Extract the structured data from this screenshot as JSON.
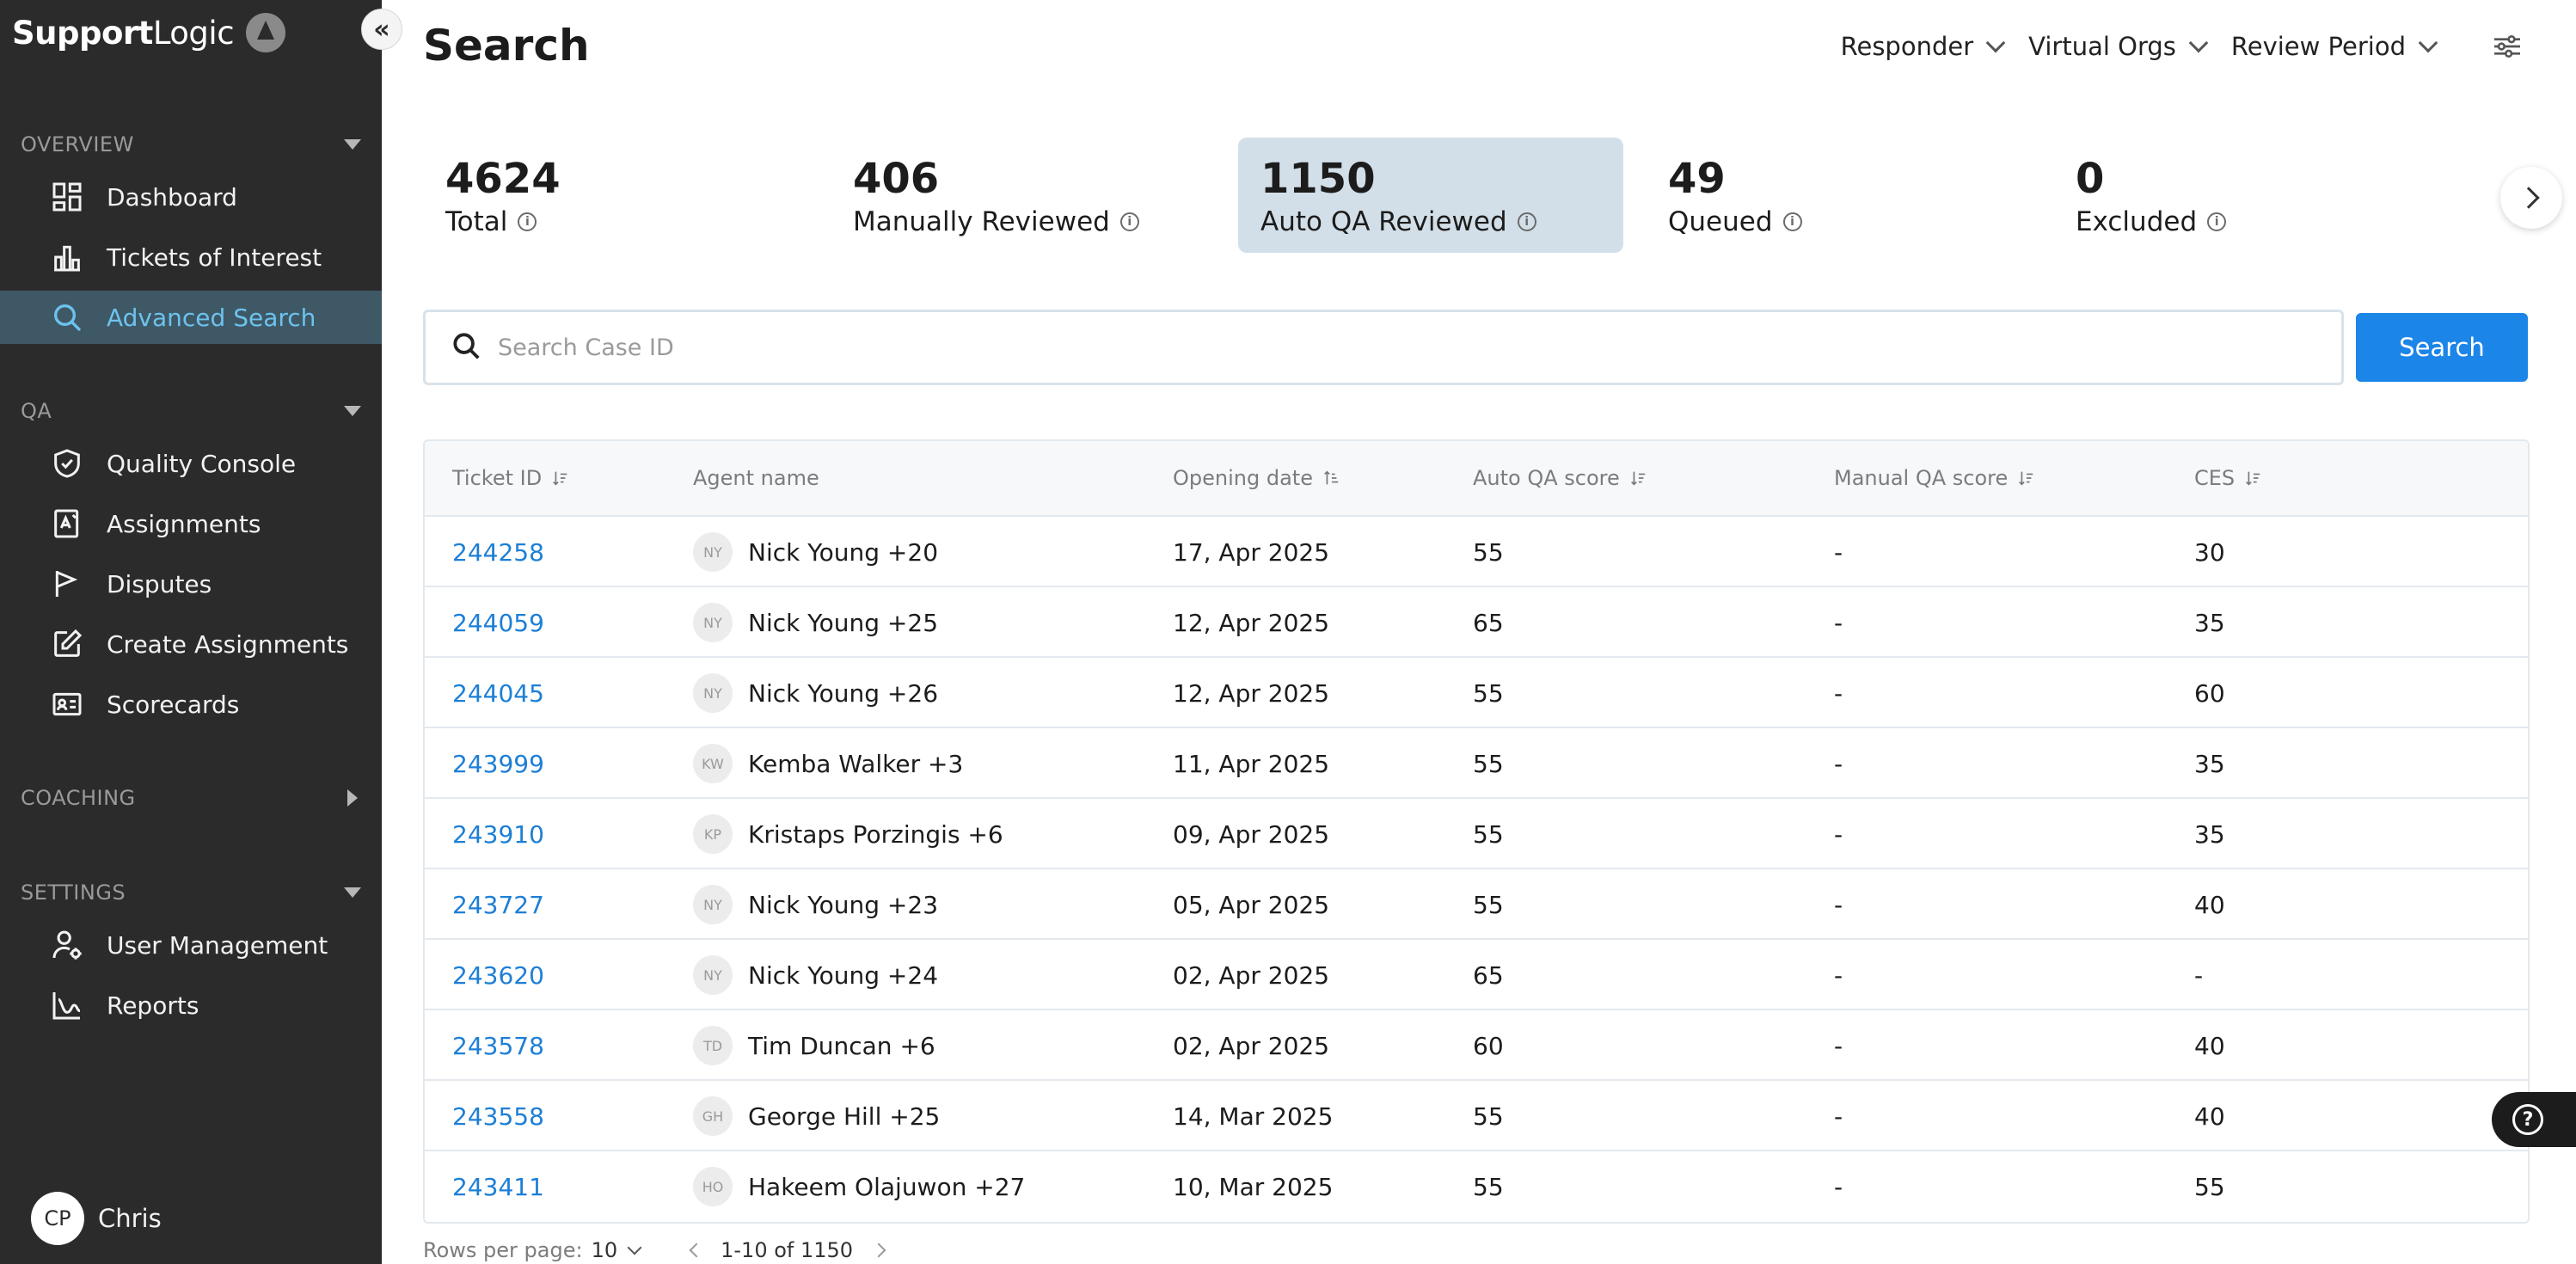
{
  "brand": {
    "name_a": "Support",
    "name_b": "Logic"
  },
  "sidebar": {
    "collapse_icon": "double-chevron-left-icon",
    "sections": [
      {
        "title": "OVERVIEW",
        "state": "expanded",
        "items": [
          {
            "label": "Dashboard",
            "icon": "dashboard-grid-icon"
          },
          {
            "label": "Tickets of Interest",
            "icon": "chart-bars-icon"
          },
          {
            "label": "Advanced Search",
            "icon": "search-icon",
            "active": true
          }
        ]
      },
      {
        "title": "QA",
        "state": "expanded",
        "items": [
          {
            "label": "Quality Console",
            "icon": "shield-check-icon"
          },
          {
            "label": "Assignments",
            "icon": "assignment-icon"
          },
          {
            "label": "Disputes",
            "icon": "flag-icon"
          },
          {
            "label": "Create Assignments",
            "icon": "edit-icon"
          },
          {
            "label": "Scorecards",
            "icon": "id-card-icon"
          }
        ]
      },
      {
        "title": "COACHING",
        "state": "collapsed",
        "items": []
      },
      {
        "title": "SETTINGS",
        "state": "expanded",
        "items": [
          {
            "label": "User Management",
            "icon": "user-settings-icon"
          },
          {
            "label": "Reports",
            "icon": "line-chart-icon"
          }
        ]
      }
    ],
    "user": {
      "initials": "CP",
      "name": "Chris"
    }
  },
  "header": {
    "title": "Search",
    "filters": [
      "Responder",
      "Virtual Orgs",
      "Review Period"
    ],
    "settings_icon": "sliders-icon"
  },
  "stats": [
    {
      "value": "4624",
      "label": "Total"
    },
    {
      "value": "406",
      "label": "Manually Reviewed"
    },
    {
      "value": "1150",
      "label": "Auto QA Reviewed",
      "selected": true
    },
    {
      "value": "49",
      "label": "Queued"
    },
    {
      "value": "0",
      "label": "Excluded"
    }
  ],
  "search": {
    "placeholder": "Search Case ID",
    "value": "",
    "button_label": "Search"
  },
  "table": {
    "columns": [
      "Ticket ID",
      "Agent name",
      "Opening date",
      "Auto QA score",
      "Manual QA score",
      "CES"
    ],
    "rows": [
      {
        "ticket": "244258",
        "initials": "NY",
        "agent": "Nick Young +20",
        "date": "17, Apr 2025",
        "auto": "55",
        "manual": "-",
        "ces": "30"
      },
      {
        "ticket": "244059",
        "initials": "NY",
        "agent": "Nick Young +25",
        "date": "12, Apr 2025",
        "auto": "65",
        "manual": "-",
        "ces": "35"
      },
      {
        "ticket": "244045",
        "initials": "NY",
        "agent": "Nick Young +26",
        "date": "12, Apr 2025",
        "auto": "55",
        "manual": "-",
        "ces": "60"
      },
      {
        "ticket": "243999",
        "initials": "KW",
        "agent": "Kemba Walker +3",
        "date": "11, Apr 2025",
        "auto": "55",
        "manual": "-",
        "ces": "35"
      },
      {
        "ticket": "243910",
        "initials": "KP",
        "agent": "Kristaps Porzingis +6",
        "date": "09, Apr 2025",
        "auto": "55",
        "manual": "-",
        "ces": "35"
      },
      {
        "ticket": "243727",
        "initials": "NY",
        "agent": "Nick Young +23",
        "date": "05, Apr 2025",
        "auto": "55",
        "manual": "-",
        "ces": "40"
      },
      {
        "ticket": "243620",
        "initials": "NY",
        "agent": "Nick Young +24",
        "date": "02, Apr 2025",
        "auto": "65",
        "manual": "-",
        "ces": "-"
      },
      {
        "ticket": "243578",
        "initials": "TD",
        "agent": "Tim Duncan +6",
        "date": "02, Apr 2025",
        "auto": "60",
        "manual": "-",
        "ces": "40"
      },
      {
        "ticket": "243558",
        "initials": "GH",
        "agent": "George Hill +25",
        "date": "14, Mar 2025",
        "auto": "55",
        "manual": "-",
        "ces": "40"
      },
      {
        "ticket": "243411",
        "initials": "HO",
        "agent": "Hakeem Olajuwon +27",
        "date": "10, Mar 2025",
        "auto": "55",
        "manual": "-",
        "ces": "55"
      }
    ]
  },
  "pagination": {
    "rows_label": "Rows per page:",
    "rows_value": "10",
    "range": "1-10 of 1150"
  },
  "help_icon": "help-question-icon",
  "colors": {
    "sidebar_bg": "#2b2b2b",
    "active_bg": "#3f5866",
    "active_text": "#6cc3ee",
    "accent": "#1c85e8",
    "link": "#1d7fd6",
    "selected_stat": "#d3dfe8"
  }
}
